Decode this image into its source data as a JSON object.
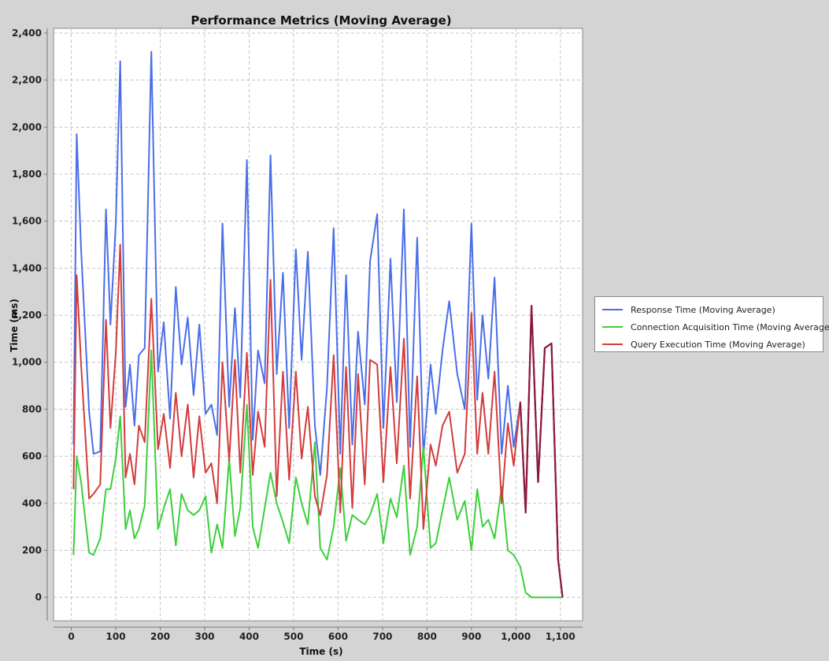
{
  "chart_data": {
    "type": "line",
    "title": "Performance Metrics (Moving Average)",
    "xlabel": "Time (s)",
    "ylabel": "Time (ms)",
    "xlim": [
      -40,
      1150
    ],
    "ylim": [
      -100,
      2420
    ],
    "x_ticks": [
      0,
      100,
      200,
      300,
      400,
      500,
      600,
      700,
      800,
      900,
      1000,
      1100
    ],
    "x_tick_labels": [
      "0",
      "100",
      "200",
      "300",
      "400",
      "500",
      "600",
      "700",
      "800",
      "900",
      "1,000",
      "1,100"
    ],
    "y_ticks": [
      0,
      200,
      400,
      600,
      800,
      1000,
      1200,
      1400,
      1600,
      1800,
      2000,
      2200,
      2400
    ],
    "y_tick_labels": [
      "0",
      "200",
      "400",
      "600",
      "800",
      "1,000",
      "1,200",
      "1,400",
      "1,600",
      "1,800",
      "2,000",
      "2,200",
      "2,400"
    ],
    "grid": true,
    "legend_position": "right",
    "overlap_color": "#8b1a3c",
    "series": [
      {
        "name": "Response Time (Moving Average)",
        "color": "#4a6ee8",
        "x": [
          5,
          12,
          22,
          40,
          50,
          65,
          78,
          88,
          100,
          110,
          122,
          132,
          142,
          152,
          165,
          180,
          195,
          208,
          222,
          235,
          248,
          262,
          275,
          288,
          302,
          315,
          328,
          340,
          355,
          368,
          380,
          395,
          408,
          420,
          435,
          448,
          462,
          476,
          490,
          505,
          518,
          532,
          548,
          560,
          575,
          590,
          605,
          618,
          632,
          645,
          660,
          672,
          688,
          702,
          718,
          732,
          748,
          762,
          778,
          792,
          808,
          820,
          835,
          850,
          868,
          885,
          900,
          913,
          925,
          938,
          952,
          968,
          982,
          995,
          1010,
          1022,
          1035,
          1050,
          1065,
          1080,
          1095,
          1105
        ],
        "y": [
          650,
          1970,
          1480,
          790,
          610,
          620,
          1650,
          1160,
          1590,
          2280,
          810,
          990,
          730,
          1030,
          1060,
          2320,
          960,
          1170,
          760,
          1320,
          990,
          1190,
          860,
          1160,
          780,
          820,
          690,
          1590,
          810,
          1230,
          850,
          1860,
          670,
          1050,
          910,
          1880,
          950,
          1380,
          720,
          1480,
          1010,
          1470,
          730,
          520,
          890,
          1570,
          610,
          1370,
          650,
          1130,
          820,
          1430,
          1630,
          720,
          1440,
          830,
          1650,
          640,
          1530,
          600,
          990,
          780,
          1050,
          1260,
          950,
          800,
          1590,
          840,
          1200,
          930,
          1360,
          610,
          900,
          640,
          830,
          360,
          1240,
          490,
          1060,
          1080,
          160,
          0
        ]
      },
      {
        "name": "Connection Acquisition Time (Moving Average)",
        "color": "#3ccf3c",
        "x": [
          5,
          12,
          22,
          40,
          50,
          65,
          78,
          88,
          100,
          110,
          122,
          132,
          142,
          152,
          165,
          180,
          195,
          208,
          222,
          235,
          248,
          262,
          275,
          288,
          302,
          315,
          328,
          340,
          355,
          368,
          380,
          395,
          408,
          420,
          435,
          448,
          462,
          476,
          490,
          505,
          518,
          532,
          548,
          560,
          575,
          590,
          605,
          618,
          632,
          645,
          660,
          672,
          688,
          702,
          718,
          732,
          748,
          762,
          778,
          792,
          808,
          820,
          835,
          850,
          868,
          885,
          900,
          913,
          925,
          938,
          952,
          968,
          982,
          995,
          1010,
          1022,
          1035,
          1050,
          1065,
          1080,
          1095,
          1105
        ],
        "y": [
          180,
          600,
          490,
          190,
          180,
          250,
          460,
          460,
          590,
          770,
          290,
          370,
          250,
          290,
          390,
          1050,
          290,
          380,
          460,
          220,
          440,
          370,
          350,
          370,
          430,
          190,
          310,
          210,
          590,
          260,
          380,
          820,
          300,
          210,
          380,
          530,
          400,
          320,
          230,
          510,
          400,
          310,
          660,
          210,
          160,
          300,
          550,
          240,
          350,
          330,
          310,
          350,
          440,
          230,
          420,
          340,
          560,
          180,
          300,
          640,
          210,
          230,
          370,
          510,
          330,
          410,
          200,
          460,
          300,
          330,
          250,
          470,
          200,
          180,
          130,
          20,
          0,
          0,
          0,
          0,
          0,
          0
        ]
      },
      {
        "name": "Query Execution Time (Moving Average)",
        "color": "#d33c3c",
        "x": [
          5,
          12,
          22,
          40,
          50,
          65,
          78,
          88,
          100,
          110,
          122,
          132,
          142,
          152,
          165,
          180,
          195,
          208,
          222,
          235,
          248,
          262,
          275,
          288,
          302,
          315,
          328,
          340,
          355,
          368,
          380,
          395,
          408,
          420,
          435,
          448,
          462,
          476,
          490,
          505,
          518,
          532,
          548,
          560,
          575,
          590,
          605,
          618,
          632,
          645,
          660,
          672,
          688,
          702,
          718,
          732,
          748,
          762,
          778,
          792,
          808,
          820,
          835,
          850,
          868,
          885,
          900,
          913,
          925,
          938,
          952,
          968,
          982,
          995,
          1010,
          1022,
          1035,
          1050,
          1065,
          1080,
          1095,
          1105
        ],
        "y": [
          460,
          1370,
          990,
          420,
          440,
          480,
          1180,
          720,
          1040,
          1500,
          510,
          610,
          480,
          730,
          660,
          1270,
          630,
          780,
          550,
          870,
          600,
          820,
          510,
          770,
          530,
          570,
          400,
          1000,
          580,
          1010,
          530,
          1040,
          520,
          790,
          640,
          1350,
          430,
          960,
          500,
          960,
          590,
          810,
          430,
          350,
          520,
          1030,
          360,
          980,
          380,
          950,
          480,
          1010,
          990,
          490,
          980,
          570,
          1100,
          420,
          940,
          290,
          650,
          560,
          730,
          790,
          530,
          610,
          1210,
          610,
          870,
          610,
          960,
          400,
          740,
          560,
          830,
          360,
          1240,
          490,
          1060,
          1080,
          160,
          0
        ]
      }
    ]
  }
}
